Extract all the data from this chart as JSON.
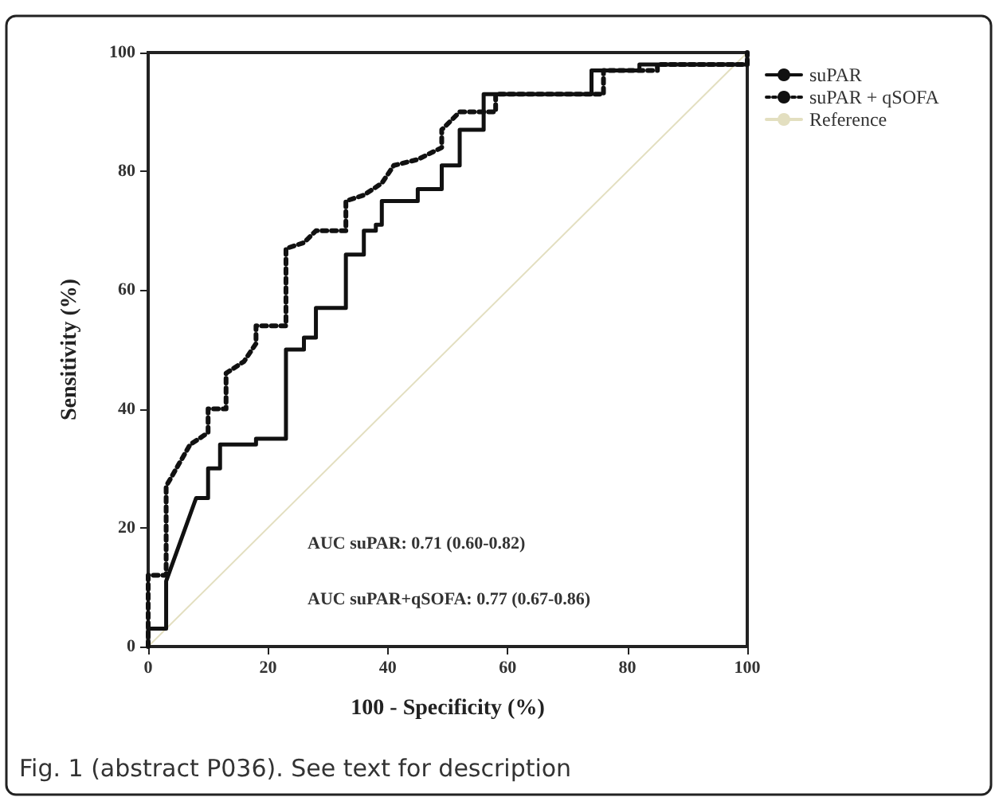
{
  "chart_data": {
    "type": "line",
    "xlabel": "100 - Specificity (%)",
    "ylabel": "Sensitivity (%)",
    "xlim": [
      0,
      100
    ],
    "ylim": [
      0,
      100
    ],
    "xticks": [
      0,
      20,
      40,
      60,
      80,
      100
    ],
    "yticks": [
      0,
      20,
      40,
      60,
      80,
      100
    ],
    "grid": false,
    "legend": "top right",
    "marker": "none",
    "series": [
      {
        "name": "suPAR",
        "color": "#111111",
        "line_style": "solid",
        "x": [
          0,
          0,
          3,
          3,
          8,
          10,
          10,
          12,
          12,
          18,
          18,
          23,
          23,
          26,
          26,
          28,
          28,
          33,
          33,
          36,
          36,
          38,
          38,
          39,
          39,
          45,
          45,
          49,
          49,
          52,
          52,
          56,
          56,
          74,
          74,
          82,
          82,
          100,
          100
        ],
        "values": [
          0,
          3,
          3,
          11,
          25,
          25,
          30,
          30,
          34,
          34,
          35,
          35,
          50,
          50,
          52,
          52,
          57,
          57,
          66,
          66,
          70,
          70,
          71,
          71,
          75,
          75,
          77,
          77,
          81,
          81,
          87,
          87,
          93,
          93,
          97,
          97,
          98,
          98,
          100
        ]
      },
      {
        "name": "suPAR + qSOFA",
        "color": "#111111",
        "line_style": "dotted",
        "x": [
          0,
          0,
          3,
          3,
          7,
          10,
          10,
          13,
          13,
          16,
          18,
          18,
          23,
          23,
          26,
          28,
          33,
          33,
          36,
          39,
          41,
          45,
          49,
          49,
          52,
          58,
          58,
          76,
          76,
          85,
          85,
          100,
          100
        ],
        "values": [
          0,
          12,
          12,
          27,
          34,
          36,
          40,
          40,
          46,
          48,
          51,
          54,
          54,
          67,
          68,
          70,
          70,
          75,
          76,
          78,
          81,
          82,
          84,
          87,
          90,
          90,
          93,
          93,
          97,
          97,
          98,
          98,
          100
        ]
      },
      {
        "name": "Reference",
        "color": "#e3dfc0",
        "line_style": "solid",
        "x": [
          0,
          100
        ],
        "values": [
          0,
          100
        ]
      }
    ],
    "annotations": [
      "AUC suPAR: 0.71 (0.60-0.82)",
      "AUC suPAR+qSOFA: 0.77 (0.67-0.86)",
      "Fig. 1 (abstract P036). See text for description"
    ]
  }
}
